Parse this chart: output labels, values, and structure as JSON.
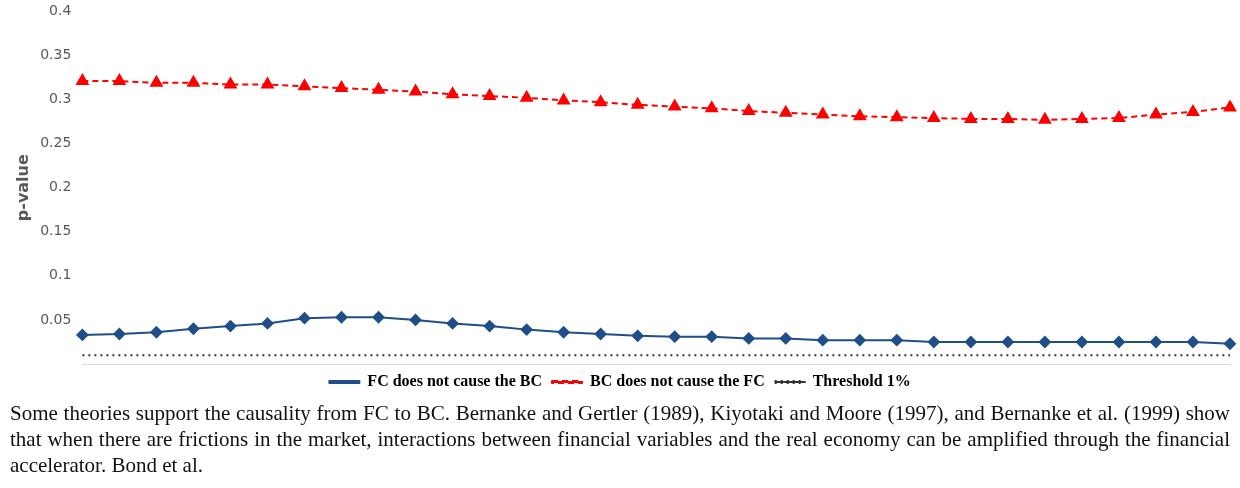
{
  "chart_data": {
    "type": "line",
    "ylabel": "p-value",
    "categories": [
      null,
      null,
      null,
      null,
      null,
      null,
      null,
      null,
      null,
      null,
      null,
      null,
      null,
      null,
      null,
      null,
      null,
      null,
      null,
      null,
      null,
      null,
      null,
      null,
      null,
      null,
      null,
      null,
      null,
      null,
      null,
      null
    ],
    "series": [
      {
        "name": "FC does not cause the BC",
        "color": "#1f4e89",
        "marker": "diamond",
        "line_style": "solid",
        "values": [
          0.033,
          0.034,
          0.036,
          0.04,
          0.043,
          0.046,
          0.052,
          0.053,
          0.053,
          0.05,
          0.046,
          0.043,
          0.039,
          0.036,
          0.034,
          0.032,
          0.031,
          0.031,
          0.029,
          0.029,
          0.027,
          0.027,
          0.027,
          0.025,
          0.025,
          0.025,
          0.025,
          0.025,
          0.025,
          0.025,
          0.025,
          0.023
        ]
      },
      {
        "name": "BC does not cause the FC",
        "color": "#ff0000",
        "marker": "triangle",
        "line_style": "dashed",
        "values": [
          0.321,
          0.321,
          0.319,
          0.319,
          0.317,
          0.317,
          0.315,
          0.313,
          0.311,
          0.309,
          0.306,
          0.304,
          0.302,
          0.299,
          0.297,
          0.294,
          0.292,
          0.29,
          0.287,
          0.285,
          0.283,
          0.281,
          0.28,
          0.279,
          0.278,
          0.278,
          0.277,
          0.278,
          0.279,
          0.283,
          0.286,
          0.291
        ]
      },
      {
        "name": "Threshold 1%",
        "color": "#333333",
        "marker": "none",
        "line_style": "dotted",
        "values": [
          0.01,
          0.01,
          0.01,
          0.01,
          0.01,
          0.01,
          0.01,
          0.01,
          0.01,
          0.01,
          0.01,
          0.01,
          0.01,
          0.01,
          0.01,
          0.01,
          0.01,
          0.01,
          0.01,
          0.01,
          0.01,
          0.01,
          0.01,
          0.01,
          0.01,
          0.01,
          0.01,
          0.01,
          0.01,
          0.01,
          0.01,
          0.01
        ]
      }
    ],
    "ylim": [
      0,
      0.4
    ],
    "yticks": [
      0.05,
      0.1,
      0.15,
      0.2,
      0.25,
      0.3,
      0.35,
      0.4
    ],
    "tick_labels": "y",
    "grid": false,
    "legend": "bottom",
    "annotations": [
      "Some theories support the causality from FC to BC. Bernanke and Gertler (1989), Kiyotaki and Moore (1997), and Bernanke et al. (1999) show that when there are frictions in the market, interactions between financial variables and the real economy can be amplified through the financial accelerator. Bond et al."
    ]
  }
}
